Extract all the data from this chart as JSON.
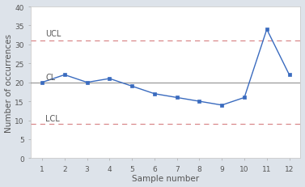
{
  "x": [
    1,
    2,
    3,
    4,
    5,
    6,
    7,
    8,
    9,
    10,
    11,
    12
  ],
  "y": [
    20,
    22,
    20,
    21,
    19,
    17,
    16,
    15,
    14,
    16,
    34,
    22
  ],
  "ucl": 31,
  "cl": 20,
  "lcl": 9,
  "ucl_label": "UCL",
  "cl_label": "CL",
  "lcl_label": "LCL",
  "line_color": "#3a6bbf",
  "marker_color": "#3a6bbf",
  "cl_color": "#999999",
  "ucl_lcl_color": "#d9888a",
  "xlabel": "Sample number",
  "ylabel": "Number of occurrences",
  "ylim": [
    0,
    40
  ],
  "xlim": [
    0.5,
    12.5
  ],
  "yticks": [
    0,
    5,
    10,
    15,
    20,
    25,
    30,
    35,
    40
  ],
  "xticks": [
    1,
    2,
    3,
    4,
    5,
    6,
    7,
    8,
    9,
    10,
    11,
    12
  ],
  "background_color": "#dde3ea",
  "plot_bg_color": "#ffffff",
  "label_color": "#555555",
  "tick_color": "#555555"
}
